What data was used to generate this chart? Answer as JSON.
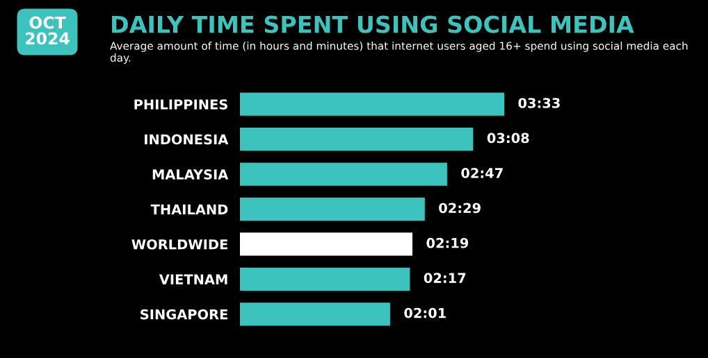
{
  "chart_data": {
    "type": "bar",
    "orientation": "horizontal",
    "title": "DAILY TIME SPENT USING SOCIAL MEDIA",
    "subtitle": "Average amount of time (in hours and minutes) that internet users aged 16+ spend using social media each day.",
    "annotations": [
      "OCT 2024"
    ],
    "categories": [
      "PHILIPPINES",
      "INDONESIA",
      "MALAYSIA",
      "THAILAND",
      "WORLDWIDE",
      "VIETNAM",
      "SINGAPORE"
    ],
    "values": [
      3.55,
      3.133,
      2.783,
      2.483,
      2.317,
      2.283,
      2.017
    ],
    "value_labels": [
      "03:33",
      "03:08",
      "02:47",
      "02:29",
      "02:19",
      "02:17",
      "02:01"
    ],
    "colors": [
      "#3cc3bd",
      "#3cc3bd",
      "#3cc3bd",
      "#3cc3bd",
      "#ffffff",
      "#3cc3bd",
      "#3cc3bd"
    ],
    "grid": false,
    "legend": false
  }
}
